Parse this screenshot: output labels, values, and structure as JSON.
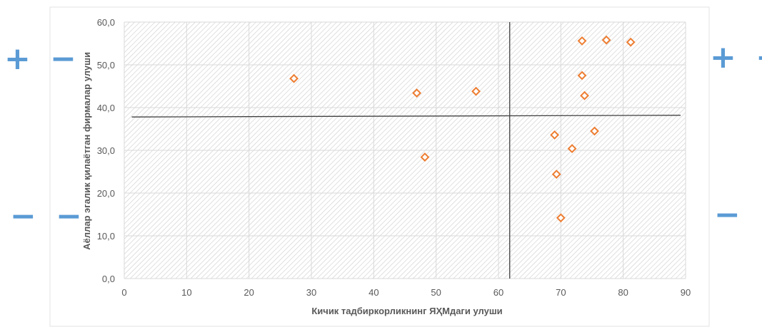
{
  "chart_data": {
    "type": "scatter",
    "xlabel": "Кичик тадбиркорликнинг ЯҲМдаги улуши",
    "ylabel": "Аёллар эгалик қилаётган фирмалар улуши",
    "xlim": [
      0,
      90
    ],
    "ylim": [
      0,
      60
    ],
    "x_ticks": [
      "0",
      "10",
      "20",
      "30",
      "40",
      "50",
      "60",
      "70",
      "80",
      "90"
    ],
    "y_ticks": [
      "0,0",
      "10,0",
      "20,0",
      "30,0",
      "40,0",
      "50,0",
      "60,0"
    ],
    "grid": true,
    "marker": "diamond-open",
    "marker_color": "#ed7d31",
    "points": [
      {
        "x": 27.2,
        "y": 46.8
      },
      {
        "x": 46.9,
        "y": 43.4
      },
      {
        "x": 48.2,
        "y": 28.4
      },
      {
        "x": 56.4,
        "y": 43.8
      },
      {
        "x": 69.0,
        "y": 33.6
      },
      {
        "x": 69.3,
        "y": 24.4
      },
      {
        "x": 70.0,
        "y": 14.2
      },
      {
        "x": 71.8,
        "y": 30.4
      },
      {
        "x": 73.4,
        "y": 55.6
      },
      {
        "x": 73.4,
        "y": 47.5
      },
      {
        "x": 73.8,
        "y": 42.8
      },
      {
        "x": 75.4,
        "y": 34.5
      },
      {
        "x": 77.3,
        "y": 55.8
      },
      {
        "x": 81.2,
        "y": 55.3
      }
    ],
    "reference_lines": {
      "vertical": {
        "x": 61.8
      },
      "horizontal": {
        "from": {
          "x": 1.2,
          "y": 37.8
        },
        "to": {
          "x": 89.2,
          "y": 38.2
        }
      }
    },
    "line_color": "#404040"
  },
  "quadrant_labels": {
    "top_left": "+ −",
    "top_right": "+ +",
    "bottom_left": "− −",
    "bottom_right": "− +"
  }
}
